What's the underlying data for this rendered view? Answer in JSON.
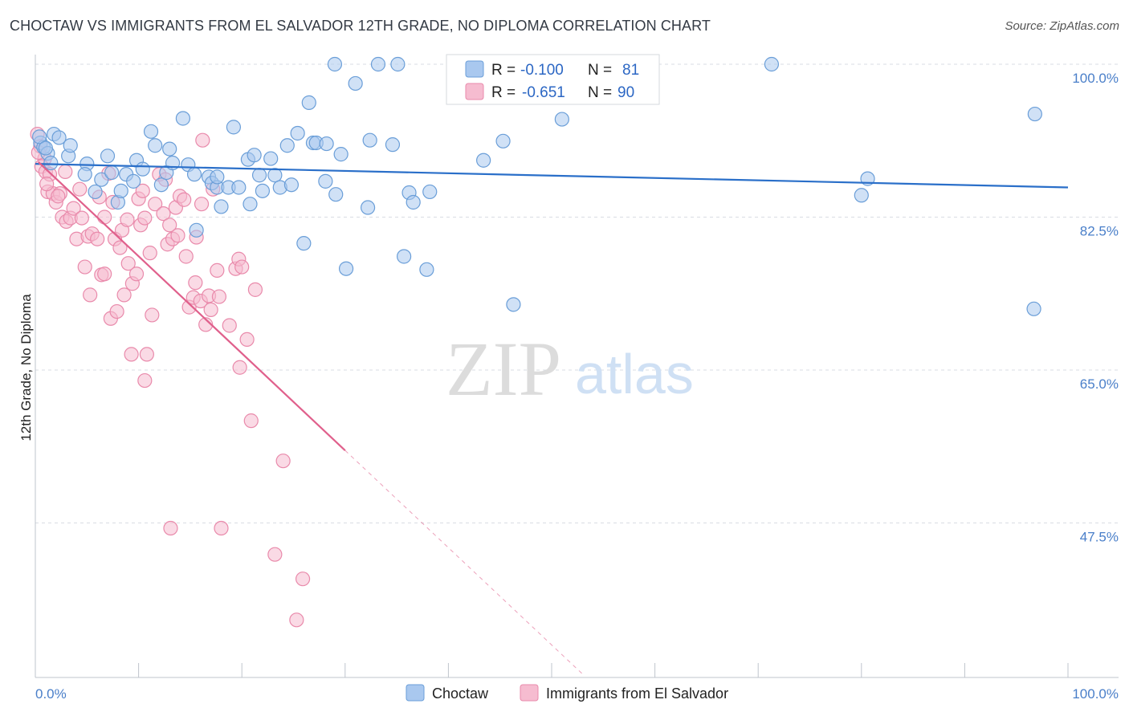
{
  "title": "CHOCTAW VS IMMIGRANTS FROM EL SALVADOR 12TH GRADE, NO DIPLOMA CORRELATION CHART",
  "source": "Source: ZipAtlas.com",
  "watermark": {
    "zip": "ZIP",
    "atlas": "atlas"
  },
  "colors": {
    "choctaw_fill": "#a9c8ef",
    "choctaw_stroke": "#6a9ed8",
    "choctaw_line": "#2a6fc9",
    "salvador_fill": "#f6bcd0",
    "salvador_stroke": "#e98aab",
    "salvador_line": "#e0608c",
    "tick_label": "#4a7fc9",
    "grid": "#d9dde3"
  },
  "legend": {
    "rows": [
      {
        "r_label": "R =",
        "r_value": "-0.100",
        "n_label": "N =",
        "n_value": "81"
      },
      {
        "r_label": "R =",
        "r_value": "-0.651",
        "n_label": "N =",
        "n_value": "90"
      }
    ]
  },
  "chart_data": {
    "type": "scatter",
    "title": "CHOCTAW VS IMMIGRANTS FROM EL SALVADOR 12TH GRADE, NO DIPLOMA CORRELATION CHART",
    "xlabel": "",
    "ylabel": "12th Grade, No Diploma",
    "xlim": [
      0,
      100
    ],
    "ylim": [
      28,
      102
    ],
    "x_tick_labels": [
      "0.0%",
      "100.0%"
    ],
    "y_ticks": [
      47.5,
      65.0,
      82.5,
      100.0
    ],
    "y_tick_labels": [
      "47.5%",
      "65.0%",
      "82.5%",
      "100.0%"
    ],
    "grid": true,
    "legend_placement": "top-center",
    "series": [
      {
        "name": "Choctaw",
        "r": -0.1,
        "n": 81,
        "trend": {
          "x": [
            0,
            100
          ],
          "y": [
            88.6,
            85.9
          ]
        },
        "points": [
          [
            0.5,
            91.0
          ],
          [
            0.8,
            90.5
          ],
          [
            1.2,
            89.8
          ],
          [
            1.8,
            92.0
          ],
          [
            2.3,
            91.6
          ],
          [
            3.2,
            89.5
          ],
          [
            3.4,
            90.7
          ],
          [
            1.5,
            88.7
          ],
          [
            5.0,
            88.6
          ],
          [
            4.8,
            87.4
          ],
          [
            5.8,
            85.4
          ],
          [
            6.4,
            86.8
          ],
          [
            7.0,
            89.5
          ],
          [
            7.4,
            87.6
          ],
          [
            8.0,
            84.2
          ],
          [
            8.3,
            85.5
          ],
          [
            8.8,
            87.4
          ],
          [
            9.5,
            86.6
          ],
          [
            9.8,
            89.0
          ],
          [
            10.4,
            88.0
          ],
          [
            11.2,
            92.3
          ],
          [
            11.6,
            90.7
          ],
          [
            12.2,
            86.2
          ],
          [
            12.7,
            87.6
          ],
          [
            13.0,
            90.3
          ],
          [
            13.3,
            88.7
          ],
          [
            14.3,
            93.8
          ],
          [
            14.8,
            88.5
          ],
          [
            15.4,
            87.4
          ],
          [
            15.6,
            81.0
          ],
          [
            16.8,
            87.1
          ],
          [
            17.1,
            86.4
          ],
          [
            17.6,
            85.9
          ],
          [
            17.6,
            87.1
          ],
          [
            18.0,
            83.7
          ],
          [
            18.7,
            85.9
          ],
          [
            19.2,
            92.8
          ],
          [
            19.7,
            85.9
          ],
          [
            20.6,
            89.1
          ],
          [
            20.8,
            84.0
          ],
          [
            21.2,
            89.6
          ],
          [
            21.7,
            87.3
          ],
          [
            22.0,
            85.5
          ],
          [
            22.8,
            89.2
          ],
          [
            23.2,
            87.3
          ],
          [
            23.7,
            85.9
          ],
          [
            24.4,
            90.7
          ],
          [
            24.8,
            86.2
          ],
          [
            25.4,
            92.1
          ],
          [
            26.0,
            79.5
          ],
          [
            26.5,
            95.6
          ],
          [
            26.9,
            91.0
          ],
          [
            27.2,
            91.0
          ],
          [
            28.1,
            86.6
          ],
          [
            28.2,
            90.9
          ],
          [
            29.1,
            85.1
          ],
          [
            29.6,
            89.7
          ],
          [
            30.1,
            76.6
          ],
          [
            29.0,
            100.0
          ],
          [
            31.0,
            97.8
          ],
          [
            32.2,
            83.6
          ],
          [
            32.4,
            91.3
          ],
          [
            33.2,
            100.0
          ],
          [
            35.1,
            100.0
          ],
          [
            34.6,
            90.8
          ],
          [
            35.7,
            78.0
          ],
          [
            36.2,
            85.3
          ],
          [
            36.6,
            84.2
          ],
          [
            37.9,
            76.5
          ],
          [
            38.2,
            85.4
          ],
          [
            43.4,
            89.0
          ],
          [
            45.3,
            91.2
          ],
          [
            46.3,
            72.5
          ],
          [
            51.0,
            93.7
          ],
          [
            71.3,
            100.0
          ],
          [
            80.0,
            85.0
          ],
          [
            80.6,
            86.9
          ],
          [
            96.8,
            94.3
          ],
          [
            96.7,
            72.0
          ],
          [
            0.4,
            91.7
          ],
          [
            1.0,
            90.4
          ]
        ]
      },
      {
        "name": "Immigrants from El Salvador",
        "r": -0.651,
        "n": 90,
        "trend": {
          "x": [
            0.3,
            30.0
          ],
          "y": [
            88.8,
            55.8
          ]
        },
        "trend_dashed": {
          "x": [
            30.0,
            53.0
          ],
          "y": [
            55.8,
            30.2
          ]
        },
        "points": [
          [
            0.2,
            92.0
          ],
          [
            0.5,
            90.6
          ],
          [
            0.9,
            89.2
          ],
          [
            0.6,
            88.3
          ],
          [
            1.0,
            87.7
          ],
          [
            1.4,
            87.4
          ],
          [
            1.2,
            85.4
          ],
          [
            1.7,
            85.2
          ],
          [
            2.0,
            84.2
          ],
          [
            2.4,
            85.2
          ],
          [
            2.6,
            82.5
          ],
          [
            2.9,
            87.7
          ],
          [
            3.0,
            82.0
          ],
          [
            3.4,
            82.4
          ],
          [
            3.7,
            83.5
          ],
          [
            4.0,
            80.0
          ],
          [
            4.3,
            85.7
          ],
          [
            4.5,
            82.4
          ],
          [
            4.8,
            76.8
          ],
          [
            5.1,
            80.3
          ],
          [
            5.3,
            73.6
          ],
          [
            5.5,
            80.6
          ],
          [
            6.0,
            80.0
          ],
          [
            6.2,
            84.8
          ],
          [
            6.4,
            75.9
          ],
          [
            6.7,
            76.0
          ],
          [
            6.7,
            82.5
          ],
          [
            7.1,
            87.5
          ],
          [
            7.3,
            70.9
          ],
          [
            7.5,
            84.2
          ],
          [
            7.7,
            80.0
          ],
          [
            7.9,
            71.7
          ],
          [
            8.2,
            79.0
          ],
          [
            8.4,
            81.0
          ],
          [
            8.6,
            73.6
          ],
          [
            8.9,
            82.2
          ],
          [
            9.0,
            77.2
          ],
          [
            9.4,
            74.9
          ],
          [
            9.3,
            66.8
          ],
          [
            9.8,
            76.0
          ],
          [
            10.0,
            84.6
          ],
          [
            10.2,
            81.6
          ],
          [
            10.4,
            85.5
          ],
          [
            10.6,
            82.4
          ],
          [
            10.6,
            63.8
          ],
          [
            10.8,
            66.8
          ],
          [
            11.1,
            78.4
          ],
          [
            11.3,
            71.3
          ],
          [
            11.6,
            84.0
          ],
          [
            12.0,
            87.4
          ],
          [
            12.4,
            82.9
          ],
          [
            12.6,
            86.8
          ],
          [
            12.8,
            79.4
          ],
          [
            13.0,
            81.6
          ],
          [
            13.1,
            46.9
          ],
          [
            13.3,
            80.0
          ],
          [
            13.6,
            83.6
          ],
          [
            13.8,
            80.4
          ],
          [
            14.0,
            84.9
          ],
          [
            14.4,
            84.5
          ],
          [
            14.6,
            78.0
          ],
          [
            14.9,
            72.2
          ],
          [
            15.3,
            73.3
          ],
          [
            15.5,
            75.0
          ],
          [
            15.6,
            80.2
          ],
          [
            16.0,
            72.9
          ],
          [
            16.1,
            84.0
          ],
          [
            16.2,
            91.3
          ],
          [
            16.5,
            70.2
          ],
          [
            16.8,
            73.5
          ],
          [
            17.0,
            71.9
          ],
          [
            17.2,
            85.7
          ],
          [
            17.6,
            76.4
          ],
          [
            17.8,
            73.4
          ],
          [
            18.0,
            46.9
          ],
          [
            18.8,
            70.1
          ],
          [
            19.4,
            76.6
          ],
          [
            19.7,
            77.7
          ],
          [
            19.8,
            65.3
          ],
          [
            20.0,
            76.8
          ],
          [
            20.5,
            68.5
          ],
          [
            20.9,
            59.2
          ],
          [
            21.3,
            74.2
          ],
          [
            23.2,
            43.9
          ],
          [
            24.0,
            54.6
          ],
          [
            25.3,
            36.4
          ],
          [
            25.9,
            41.1
          ],
          [
            0.3,
            89.9
          ],
          [
            1.1,
            86.3
          ],
          [
            2.2,
            84.9
          ]
        ]
      }
    ]
  },
  "bottom_legend": {
    "items": [
      "Choctaw",
      "Immigrants from El Salvador"
    ]
  }
}
